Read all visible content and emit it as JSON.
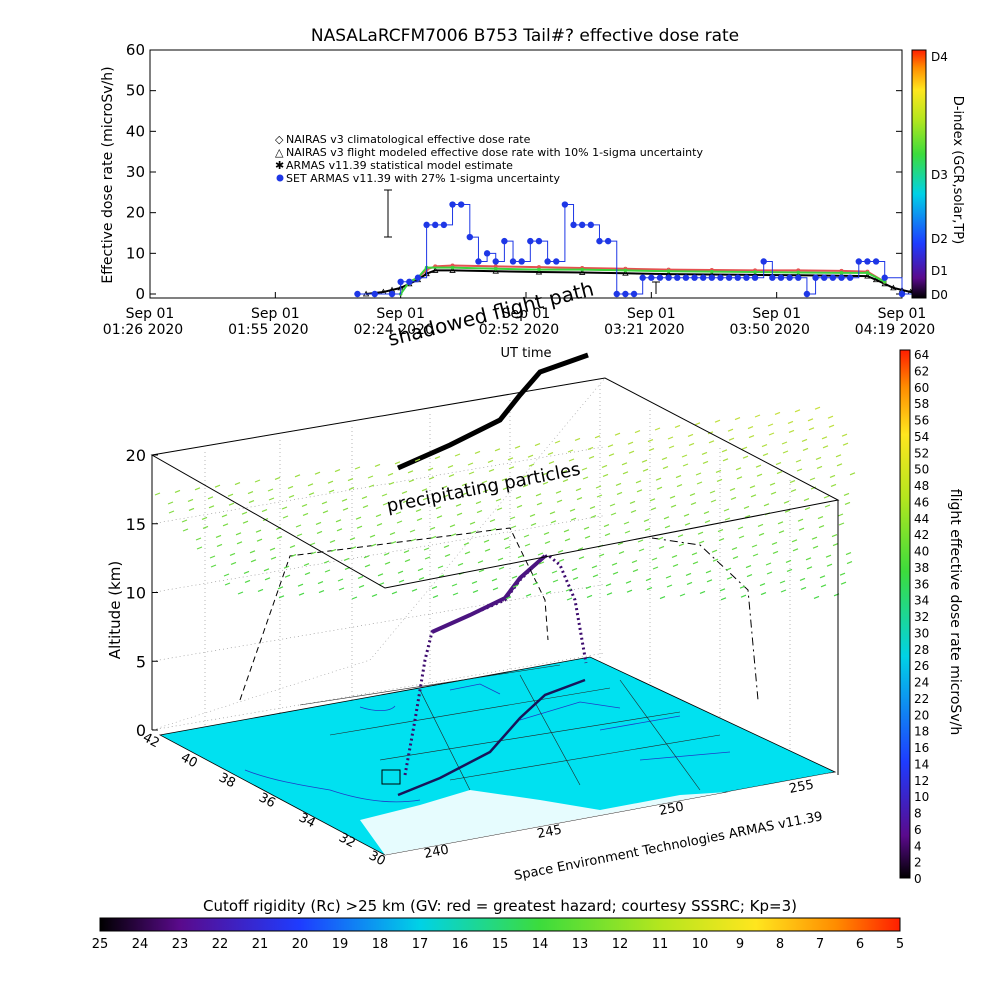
{
  "chart_data": [
    {
      "type": "line",
      "title": "NASALaRCFM7006  B753 Tail#? effective dose rate",
      "ylabel": "Effective dose rate (microSv/h)",
      "xlabel": "UT time",
      "ylim": [
        0,
        60
      ],
      "y_ticks": [
        "0",
        "10",
        "20",
        "30",
        "40",
        "50",
        "60"
      ],
      "x_ticks": [
        {
          "date": "Sep 01",
          "time": "01:26 2020"
        },
        {
          "date": "Sep 01",
          "time": "01:55 2020"
        },
        {
          "date": "Sep 01",
          "time": "02:24 2020"
        },
        {
          "date": "Sep 01",
          "time": "02:52 2020"
        },
        {
          "date": "Sep 01",
          "time": "03:21 2020"
        },
        {
          "date": "Sep 01",
          "time": "03:50 2020"
        },
        {
          "date": "Sep 01",
          "time": "04:19 2020"
        }
      ],
      "legend": [
        "NAIRAS v3 climatological effective dose rate",
        "NAIRAS v3 flight modeled effective dose rate with 10% 1-sigma uncertainty",
        "ARMAS v11.39 statistical model estimate",
        "SET ARMAS v11.39 with 27% 1-sigma uncertainty"
      ],
      "legend_position": "upper-middle",
      "annotations": [
        "shadowed flight path"
      ],
      "series": [
        {
          "name": "SET ARMAS v11.39 with 27% 1-sigma uncertainty",
          "color": "#1e37e6",
          "x_min": [
            48,
            52,
            56,
            58,
            60,
            62,
            64,
            66,
            68,
            70,
            72,
            74,
            76,
            78,
            80,
            82,
            84,
            86,
            88,
            90,
            92,
            94,
            96,
            98,
            100,
            102,
            104,
            106,
            108,
            110,
            112,
            114,
            116,
            118,
            120,
            122,
            124,
            126,
            128,
            130,
            132,
            134,
            136,
            138,
            140,
            142,
            144,
            146,
            148,
            150,
            152,
            154,
            156,
            158,
            160,
            162,
            164,
            166,
            168,
            170,
            174,
            178
          ],
          "values": [
            0,
            0,
            0,
            3,
            3,
            4,
            17,
            17,
            17,
            22,
            22,
            14,
            8,
            10,
            8,
            13,
            8,
            8,
            13,
            13,
            8,
            8,
            22,
            17,
            17,
            17,
            13,
            13,
            0,
            0,
            0,
            4,
            4,
            4,
            4,
            4,
            4,
            4,
            4,
            4,
            4,
            4,
            4,
            4,
            4,
            8,
            4,
            4,
            4,
            4,
            0,
            4,
            4,
            4,
            4,
            4,
            8,
            8,
            8,
            4,
            0,
            0
          ]
        },
        {
          "name": "ARMAS v11.39 statistical model estimate",
          "color": "#3cd23c",
          "x_min": [
            58,
            60,
            62,
            64,
            70,
            80,
            90,
            100,
            110,
            120,
            130,
            140,
            150,
            160,
            166,
            170
          ],
          "values": [
            0,
            3,
            4,
            6.5,
            6.5,
            6.2,
            6,
            6,
            5.8,
            5.6,
            5.5,
            5.4,
            5.3,
            5.2,
            5.2,
            3
          ]
        },
        {
          "name": "NAIRAS v3 climatological effective dose rate",
          "color": "#e65050",
          "x_min": [
            60,
            62,
            64,
            66,
            70,
            80,
            90,
            100,
            110,
            120,
            130,
            140,
            150,
            160,
            166,
            170
          ],
          "values": [
            3,
            4,
            6,
            6.8,
            7,
            6.8,
            6.6,
            6.4,
            6.2,
            6,
            5.9,
            5.8,
            5.8,
            5.7,
            5.5,
            3
          ]
        },
        {
          "name": "NAIRAS v3 flight modeled effective dose rate with 10% 1-sigma uncertainty",
          "color": "#000000",
          "x_min": [
            50,
            54,
            56,
            58,
            60,
            62,
            64,
            66,
            70,
            80,
            90,
            100,
            110,
            120,
            130,
            140,
            150,
            160,
            166,
            168,
            170,
            172,
            174,
            176,
            178
          ],
          "values": [
            0,
            0.5,
            1,
            1.5,
            2.5,
            3.5,
            5,
            5.8,
            5.8,
            5.6,
            5.4,
            5.3,
            5.1,
            4.9,
            4.8,
            4.7,
            4.6,
            4.5,
            4.4,
            3.5,
            2.5,
            1.5,
            1,
            0.5,
            0
          ]
        }
      ],
      "side_colorbar": {
        "title": "D-index (GCR,solar,TP)",
        "labels": [
          "D4",
          "D3",
          "D2",
          "D1",
          "D0"
        ]
      }
    },
    {
      "type": "scatter",
      "title": "",
      "zlabel": "Altitude (km)",
      "z_ticks": [
        "0",
        "5",
        "10",
        "15",
        "20"
      ],
      "lat_ticks": [
        "42",
        "40",
        "38",
        "36",
        "34",
        "32",
        "30"
      ],
      "lon_ticks": [
        "240",
        "245",
        "250",
        "255"
      ],
      "annotations": [
        "precipitating particles"
      ],
      "credit": "Space Environment Technologies ARMAS v11.39",
      "right_colorbar": {
        "title": "flight effective dose rate microSv/h",
        "range": [
          0,
          64
        ],
        "labels": [
          "64",
          "62",
          "60",
          "58",
          "56",
          "54",
          "52",
          "50",
          "48",
          "46",
          "44",
          "42",
          "40",
          "38",
          "36",
          "34",
          "32",
          "30",
          "28",
          "26",
          "24",
          "22",
          "20",
          "18",
          "16",
          "14",
          "12",
          "10",
          "8",
          "6",
          "4",
          "2",
          "0"
        ]
      },
      "bottom_colorbar": {
        "title": "Cutoff rigidity (Rc) >25 km (GV: red = greatest hazard; courtesy SSSRC; Kp=3)",
        "labels": [
          "25",
          "24",
          "23",
          "22",
          "21",
          "20",
          "19",
          "18",
          "17",
          "16",
          "15",
          "14",
          "13",
          "12",
          "11",
          "10",
          "9",
          "8",
          "7",
          "6",
          "5"
        ]
      }
    }
  ]
}
